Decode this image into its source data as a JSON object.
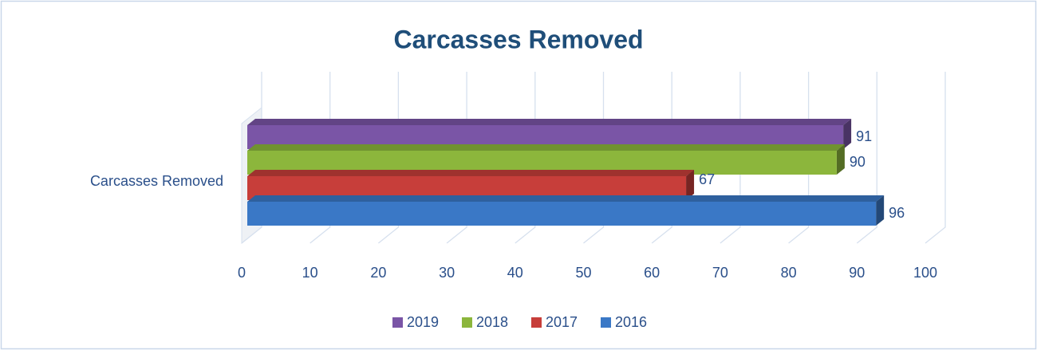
{
  "chart_data": {
    "type": "bar",
    "orientation": "horizontal",
    "title": "Carcasses Removed",
    "categories": [
      "Carcasses Removed"
    ],
    "series": [
      {
        "name": "2019",
        "color": "#7a55a6",
        "values": [
          91
        ]
      },
      {
        "name": "2018",
        "color": "#8cb63c",
        "values": [
          90
        ]
      },
      {
        "name": "2017",
        "color": "#c73e3a",
        "values": [
          67
        ]
      },
      {
        "name": "2016",
        "color": "#3a78c6",
        "values": [
          96
        ]
      }
    ],
    "xlim": [
      0,
      100
    ],
    "xticks": [
      0,
      10,
      20,
      30,
      40,
      50,
      60,
      70,
      80,
      90,
      100
    ],
    "grid": true,
    "legend": "bottom",
    "data_labels": true
  }
}
